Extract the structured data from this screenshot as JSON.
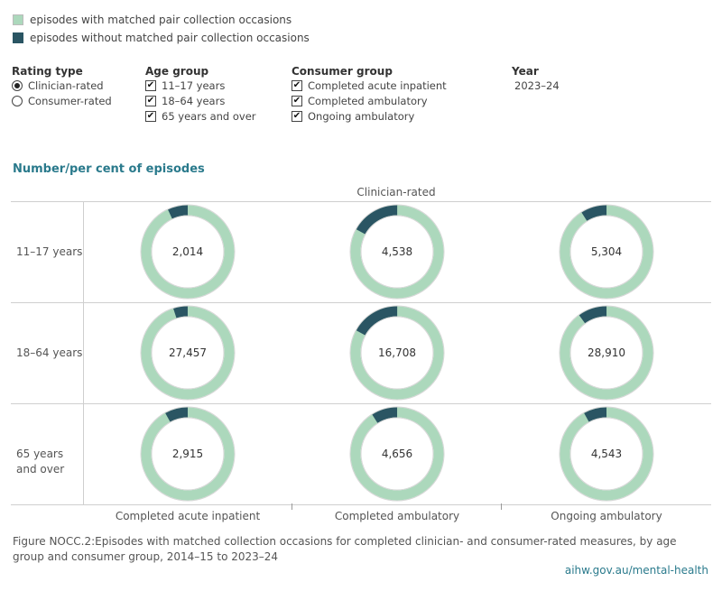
{
  "legend": {
    "items": [
      {
        "label": "episodes with matched pair collection occasions",
        "color": "#acd8bc"
      },
      {
        "label": "episodes without matched pair collection occasions",
        "color": "#2a5563"
      }
    ]
  },
  "controls": {
    "rating_type": {
      "title": "Rating type",
      "options": [
        {
          "label": "Clinician-rated",
          "selected": true
        },
        {
          "label": "Consumer-rated",
          "selected": false
        }
      ]
    },
    "age_group": {
      "title": "Age group",
      "options": [
        {
          "label": "11–17 years",
          "checked": true
        },
        {
          "label": "18–64 years",
          "checked": true
        },
        {
          "label": "65 years and over",
          "checked": true
        }
      ]
    },
    "consumer_group": {
      "title": "Consumer group",
      "options": [
        {
          "label": "Completed acute inpatient",
          "checked": true
        },
        {
          "label": "Completed ambulatory",
          "checked": true
        },
        {
          "label": "Ongoing ambulatory",
          "checked": true
        }
      ]
    },
    "year": {
      "title": "Year",
      "value": "2023–24"
    }
  },
  "chart_title": "Number/per cent of episodes",
  "panel_label": "Clinician-rated",
  "chart_data": {
    "type": "pie",
    "rows": [
      "11–17 years",
      "18–64 years",
      "65 years and over"
    ],
    "columns": [
      "Completed acute inpatient",
      "Completed ambulatory",
      "Ongoing ambulatory"
    ],
    "series": [
      {
        "name": "episodes with matched pair collection occasions",
        "color": "#acd8bc"
      },
      {
        "name": "episodes without matched pair collection occasions",
        "color": "#2a5563"
      }
    ],
    "cells": [
      [
        {
          "total": "2,014",
          "without_pct": 7
        },
        {
          "total": "4,538",
          "without_pct": 17
        },
        {
          "total": "5,304",
          "without_pct": 9
        }
      ],
      [
        {
          "total": "27,457",
          "without_pct": 5
        },
        {
          "total": "16,708",
          "without_pct": 17
        },
        {
          "total": "28,910",
          "without_pct": 10
        }
      ],
      [
        {
          "total": "2,915",
          "without_pct": 8
        },
        {
          "total": "4,656",
          "without_pct": 9
        },
        {
          "total": "4,543",
          "without_pct": 8
        }
      ]
    ]
  },
  "caption": "Figure NOCC.2:Episodes with matched collection occasions for completed clinician- and consumer-rated measures, by age group and consumer group, 2014–15 to 2023–24",
  "source_link": "aihw.gov.au/mental-health"
}
